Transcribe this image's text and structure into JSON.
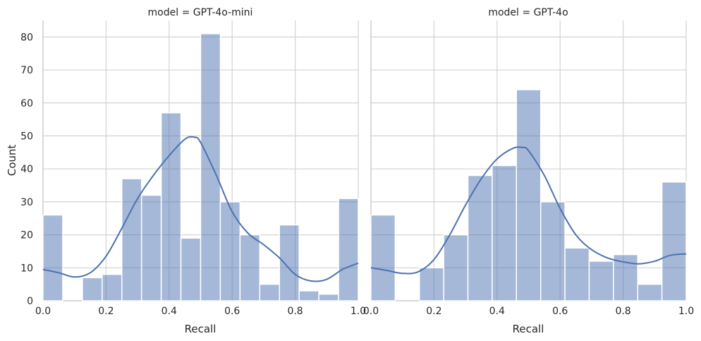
{
  "chart_data": [
    {
      "type": "bar",
      "title": "model = GPT-4o-mini",
      "xlabel": "Recall",
      "ylabel": "Count",
      "xlim": [
        0.0,
        1.0
      ],
      "ylim": [
        0,
        85
      ],
      "xticks": [
        "0.0",
        "0.2",
        "0.4",
        "0.6",
        "0.8",
        "1.0"
      ],
      "yticks": [
        "0",
        "10",
        "20",
        "30",
        "40",
        "50",
        "60",
        "70",
        "80"
      ],
      "grid": true,
      "bin_edges": [
        0.0,
        0.0625,
        0.125,
        0.1875,
        0.25,
        0.3125,
        0.375,
        0.4375,
        0.5,
        0.5625,
        0.625,
        0.6875,
        0.75,
        0.8125,
        0.875,
        0.9375,
        1.0
      ],
      "values": [
        26,
        0,
        7,
        8,
        37,
        32,
        57,
        19,
        81,
        30,
        20,
        5,
        23,
        3,
        2,
        31
      ],
      "kde": {
        "x": [
          0.0,
          0.05,
          0.1,
          0.15,
          0.2,
          0.25,
          0.3,
          0.35,
          0.4,
          0.45,
          0.48,
          0.5,
          0.55,
          0.6,
          0.65,
          0.7,
          0.75,
          0.8,
          0.85,
          0.9,
          0.95,
          1.0
        ],
        "y": [
          9.5,
          8.5,
          7.2,
          8.5,
          13.5,
          22,
          31,
          38,
          44,
          49,
          49.6,
          48,
          38,
          27,
          20.5,
          17,
          13,
          8,
          6,
          6.5,
          9.5,
          11.4
        ]
      }
    },
    {
      "type": "bar",
      "title": "model = GPT-4o",
      "xlabel": "Recall",
      "ylabel": "",
      "xlim": [
        0.0,
        1.0
      ],
      "ylim": [
        0,
        85
      ],
      "xticks": [
        "0.0",
        "0.2",
        "0.4",
        "0.6",
        "0.8",
        "1.0"
      ],
      "grid": true,
      "bin_edges": [
        0.0,
        0.0769,
        0.1538,
        0.2308,
        0.3077,
        0.3846,
        0.4615,
        0.5385,
        0.6154,
        0.6923,
        0.7692,
        0.8462,
        0.9231,
        1.0
      ],
      "values": [
        26,
        0,
        10,
        20,
        38,
        41,
        64,
        30,
        16,
        12,
        14,
        5,
        36
      ],
      "kde": {
        "x": [
          0.0,
          0.05,
          0.1,
          0.15,
          0.2,
          0.25,
          0.3,
          0.35,
          0.4,
          0.45,
          0.48,
          0.5,
          0.55,
          0.6,
          0.65,
          0.7,
          0.75,
          0.8,
          0.85,
          0.9,
          0.95,
          1.0
        ],
        "y": [
          10,
          9.2,
          8.3,
          8.8,
          12.5,
          20,
          29,
          37,
          43,
          46.2,
          46.5,
          45.5,
          38,
          28,
          20,
          15.5,
          13,
          11.8,
          11.2,
          12,
          13.8,
          14.2
        ]
      }
    }
  ],
  "colors": {
    "bar": "#4c72b0",
    "kde": "#4c72b0",
    "grid": "#d3d3d3",
    "spine": "#cfcfcf"
  }
}
